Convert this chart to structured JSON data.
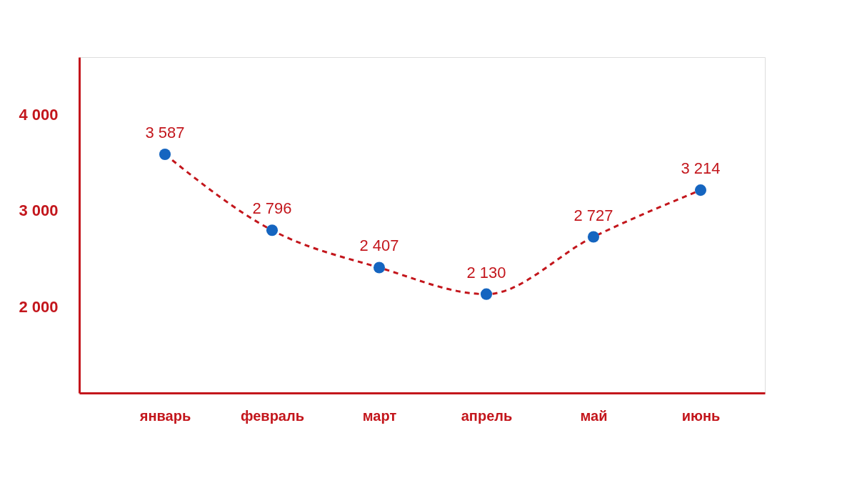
{
  "chart_data": {
    "type": "line",
    "categories": [
      "январь",
      "февраль",
      "март",
      "апрель",
      "май",
      "июнь"
    ],
    "series": [
      {
        "color": "#c3161c",
        "colors": [
          "#1565c0",
          "#1565c0",
          "#1565c0",
          "#1565c0",
          "#1565c0",
          "#1565c0"
        ],
        "values": [
          3587,
          2796,
          2407,
          2130,
          2727,
          3214
        ],
        "value_labels": [
          "3 587",
          "2 796",
          "2 407",
          "2 130",
          "2 727",
          "3 214"
        ]
      }
    ],
    "ylim": [
      1100,
      4600
    ],
    "yticks": [
      {
        "value": 2000,
        "label": "2 000"
      },
      {
        "value": 3000,
        "label": "3 000"
      },
      {
        "value": 4000,
        "label": "4 000"
      }
    ],
    "grid": false,
    "marker": "circle",
    "line_style": "dashed"
  }
}
